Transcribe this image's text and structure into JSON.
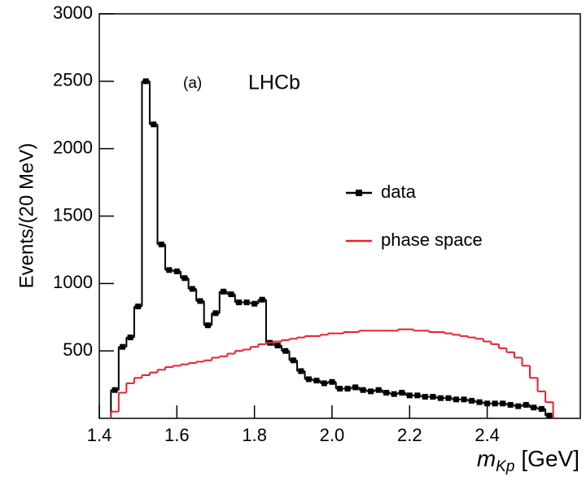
{
  "chart_data": {
    "type": "histogram",
    "y_label": "Events/(20 MeV)",
    "x_label": {
      "symbol": "m",
      "subscript": "Kp",
      "unit": "[GeV]"
    },
    "annotations": [
      "(a)",
      "LHCb"
    ],
    "bins": [
      1.43,
      1.45,
      1.47,
      1.49,
      1.51,
      1.53,
      1.55,
      1.57,
      1.59,
      1.61,
      1.63,
      1.65,
      1.67,
      1.69,
      1.71,
      1.73,
      1.75,
      1.77,
      1.79,
      1.81,
      1.83,
      1.85,
      1.87,
      1.89,
      1.91,
      1.93,
      1.95,
      1.97,
      1.99,
      2.01,
      2.03,
      2.05,
      2.07,
      2.09,
      2.11,
      2.13,
      2.15,
      2.17,
      2.19,
      2.21,
      2.23,
      2.25,
      2.27,
      2.29,
      2.31,
      2.33,
      2.35,
      2.37,
      2.39,
      2.41,
      2.43,
      2.45,
      2.47,
      2.49,
      2.51,
      2.53,
      2.55,
      2.57
    ],
    "series": [
      {
        "name": "data",
        "color": "#000000",
        "markers": true,
        "values": [
          210,
          530,
          600,
          830,
          2500,
          2180,
          1290,
          1100,
          1090,
          1040,
          960,
          870,
          690,
          780,
          940,
          920,
          860,
          860,
          850,
          880,
          560,
          540,
          500,
          430,
          350,
          290,
          280,
          260,
          270,
          220,
          220,
          230,
          210,
          200,
          210,
          190,
          180,
          190,
          170,
          170,
          160,
          160,
          150,
          150,
          140,
          140,
          130,
          120,
          110,
          110,
          110,
          100,
          90,
          100,
          80,
          70,
          20
        ]
      },
      {
        "name": "phase space",
        "color": "#e8202a",
        "markers": false,
        "values": [
          50,
          190,
          260,
          300,
          320,
          340,
          360,
          380,
          390,
          400,
          410,
          420,
          430,
          450,
          460,
          480,
          500,
          510,
          530,
          550,
          560,
          570,
          580,
          590,
          600,
          610,
          610,
          620,
          630,
          630,
          640,
          640,
          650,
          650,
          650,
          650,
          650,
          660,
          660,
          650,
          650,
          640,
          640,
          630,
          620,
          610,
          600,
          590,
          570,
          550,
          520,
          490,
          450,
          390,
          300,
          200,
          120
        ]
      }
    ],
    "xlim": [
      1.4,
      2.64
    ],
    "ylim": [
      0,
      3000
    ],
    "xticks": [
      1.4,
      1.6,
      1.8,
      {
        "value": 2,
        "label": "2.0"
      },
      2.2,
      2.4
    ],
    "yticks": [
      500,
      1000,
      1500,
      2000,
      2500,
      3000
    ]
  }
}
